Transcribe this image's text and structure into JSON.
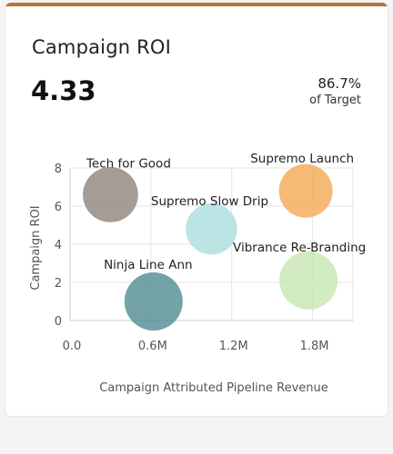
{
  "card": {
    "title": "Campaign ROI",
    "kpi_value": "4.33",
    "kpi_percent": "86.7%",
    "kpi_target_label": "of Target",
    "accent_color": "#b87333"
  },
  "chart_data": {
    "type": "scatter",
    "xlabel": "Campaign Attributed Pipeline Revenue",
    "ylabel": "Campaign ROI",
    "xlim": [
      0,
      2100000
    ],
    "ylim": [
      0,
      8
    ],
    "x_ticks": [
      {
        "value": 0,
        "label": "0.0"
      },
      {
        "value": 600000,
        "label": "0.6M"
      },
      {
        "value": 1200000,
        "label": "1.2M"
      },
      {
        "value": 1800000,
        "label": "1.8M"
      }
    ],
    "y_ticks": [
      {
        "value": 0,
        "label": "0"
      },
      {
        "value": 2,
        "label": "2"
      },
      {
        "value": 4,
        "label": "4"
      },
      {
        "value": 6,
        "label": "6"
      },
      {
        "value": 8,
        "label": "8"
      }
    ],
    "grid": true,
    "points": [
      {
        "name": "Tech for Good",
        "x": 300000,
        "y": 6.6,
        "size": 0.9,
        "color": "#8c8079"
      },
      {
        "name": "Supremo Launch",
        "x": 1750000,
        "y": 6.8,
        "size": 0.85,
        "color": "#f3a64f"
      },
      {
        "name": "Supremo Slow Drip",
        "x": 1050000,
        "y": 4.8,
        "size": 0.78,
        "color": "#a9dcdc"
      },
      {
        "name": "Vibrance Re-Branding",
        "x": 1770000,
        "y": 2.1,
        "size": 1.0,
        "color": "#c7e5b0"
      },
      {
        "name": "Ninja Line Ann",
        "x": 620000,
        "y": 1.0,
        "size": 1.0,
        "color": "#4d8891"
      }
    ]
  }
}
